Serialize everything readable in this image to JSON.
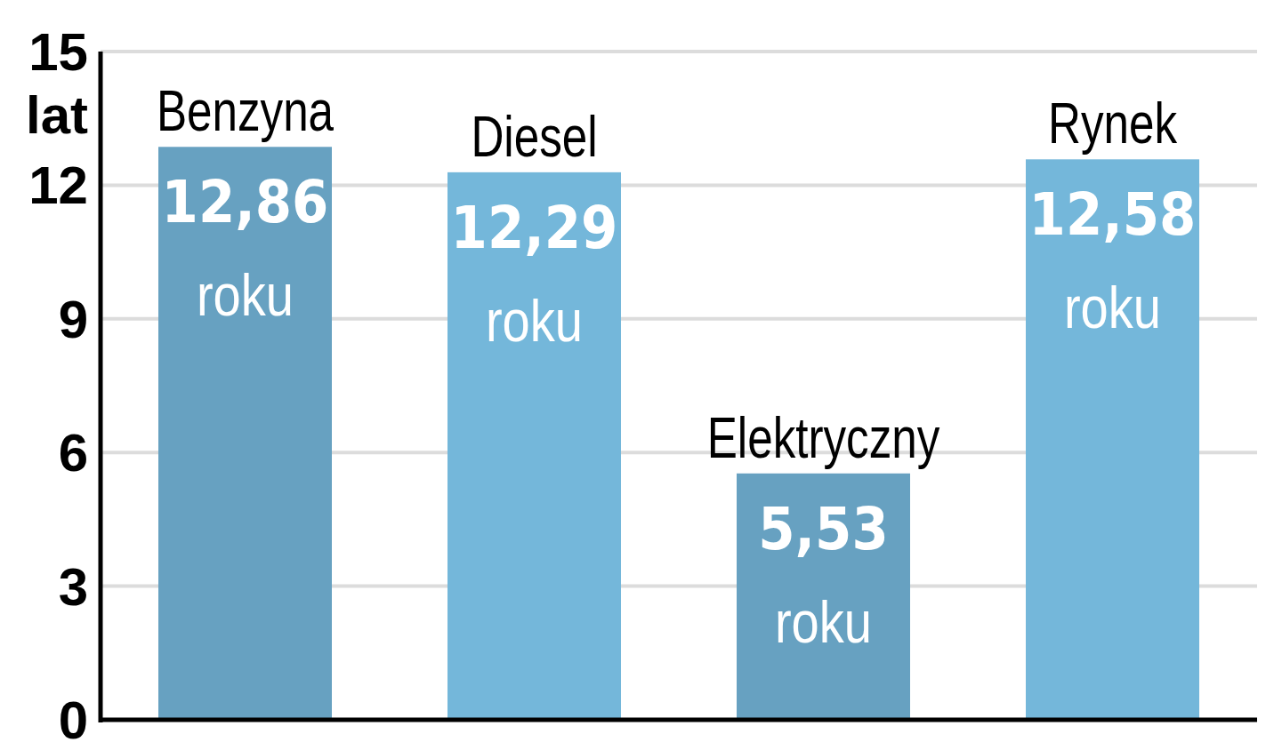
{
  "chart_data": {
    "type": "bar",
    "ylabel": "lat",
    "categories": [
      "Benzyna",
      "Diesel",
      "Elektryczny",
      "Rynek"
    ],
    "values": [
      12.86,
      12.29,
      5.53,
      12.58
    ],
    "colors": [
      "#67a1c1",
      "#74b7da",
      "#67a1c1",
      "#74b7da"
    ],
    "value_labels": [
      "12,86 roku",
      "12,29 roku",
      "5,53 roku",
      "12,58 roku"
    ],
    "ylim": [
      0,
      15
    ],
    "yticks": [
      0,
      3,
      6,
      9,
      12,
      15
    ],
    "grid": "y"
  }
}
